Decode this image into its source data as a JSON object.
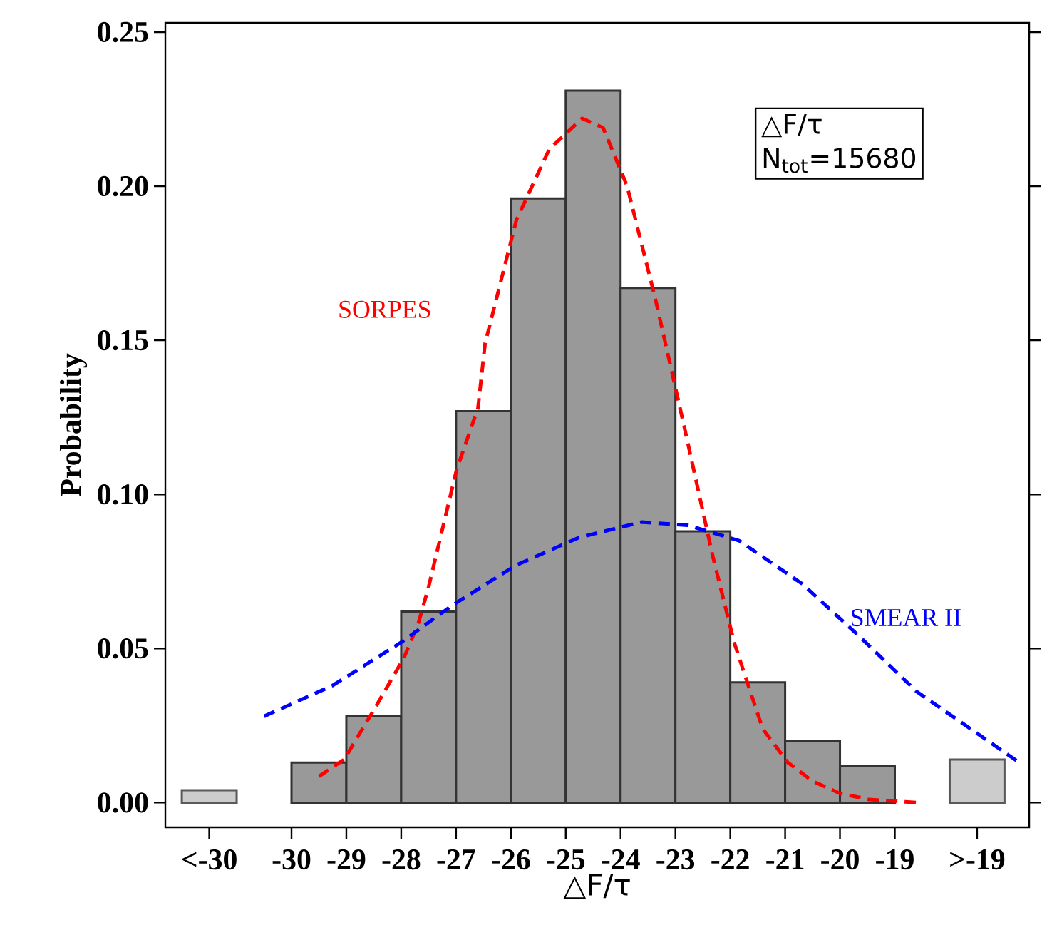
{
  "chart_data": {
    "type": "histogram",
    "xlabel": "△F/τ",
    "ylabel": "Probability",
    "bins": [
      -30,
      -29,
      -28,
      -27,
      -26,
      -25,
      -24,
      -23,
      -22,
      -21,
      -20,
      -19
    ],
    "values": [
      0.013,
      0.028,
      0.062,
      0.127,
      0.196,
      0.231,
      0.167,
      0.088,
      0.039,
      0.02,
      0.012
    ],
    "color": "#999999",
    "series": [
      {
        "type": "bar",
        "color": "#cccccc",
        "x": [
          -31.5,
          -17.5
        ],
        "values": [
          0.004,
          0.014
        ]
      },
      {
        "type": "line",
        "name": "SORPES",
        "color": "#ff0000",
        "line_style": "dashed",
        "x": [
          -29.5,
          -29.04,
          -28.5,
          -27.95,
          -27.69,
          -27.5,
          -26.99,
          -26.6,
          -26.47,
          -25.9,
          -25.3,
          -24.7,
          -24.32,
          -23.88,
          -23.36,
          -22.84,
          -22.32,
          -21.93,
          -21.69,
          -21.41,
          -20.95,
          -20.5,
          -20.0,
          -19.47,
          -18.56
        ],
        "values": [
          0.0085,
          0.014,
          0.03,
          0.047,
          0.058,
          0.07,
          0.108,
          0.128,
          0.149,
          0.189,
          0.212,
          0.222,
          0.219,
          0.2,
          0.163,
          0.122,
          0.08,
          0.052,
          0.039,
          0.024,
          0.013,
          0.007,
          0.003,
          0.001,
          0.0
        ]
      },
      {
        "type": "line",
        "name": "SMEAR II",
        "color": "#0000ff",
        "line_style": "dashed",
        "x": [
          -30.5,
          -29.25,
          -28.0,
          -27.07,
          -25.91,
          -24.76,
          -23.62,
          -22.78,
          -21.84,
          -20.69,
          -19.65,
          -18.6,
          -16.73
        ],
        "values": [
          0.028,
          0.038,
          0.052,
          0.064,
          0.077,
          0.086,
          0.091,
          0.09,
          0.085,
          0.071,
          0.054,
          0.036,
          0.013
        ]
      }
    ],
    "annotations": [
      "△F/τ",
      "N$_{tot}$=15680"
    ],
    "xlim": [
      -32.3,
      -16.55
    ],
    "ylim": [
      -0.008,
      0.253
    ],
    "xticks": [
      {
        "value": -31.5,
        "label": "<-30"
      },
      -30,
      -29,
      -28,
      -27,
      -26,
      -25,
      -24,
      -23,
      -22,
      -21,
      -20,
      -19,
      {
        "value": -17.5,
        "label": ">-19"
      }
    ],
    "yticks": [
      {
        "value": 0,
        "label": "0.00"
      },
      {
        "value": 0.05,
        "label": "0.05"
      },
      {
        "value": 0.1,
        "label": "0.10"
      },
      {
        "value": 0.15,
        "label": "0.15"
      },
      {
        "value": 0.2,
        "label": "0.20"
      },
      {
        "value": 0.25,
        "label": "0.25"
      }
    ]
  }
}
